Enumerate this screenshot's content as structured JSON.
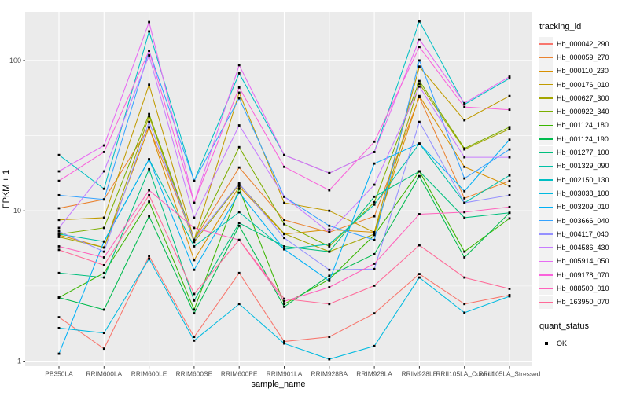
{
  "chart_data": {
    "type": "line",
    "title": "",
    "xlabel": "sample_name",
    "ylabel": "FPKM + 1",
    "y_scale": "log10",
    "ylim": [
      1,
      200
    ],
    "yticks": [
      1,
      10,
      100
    ],
    "grid": "on",
    "legend_position": "right",
    "legend_title": "tracking_id",
    "categories": [
      "PB350LA",
      "RRIM600LA",
      "RRIM600LE",
      "RRIM600SE",
      "RRIM600PE",
      "RRIM901LA",
      "RRIM928BA",
      "RRIM928LA",
      "RRIM928LE",
      "RRII105LA_Control",
      "RRII105LA_Stressed"
    ],
    "series": [
      {
        "name": "Hb_000042_290",
        "color": "#F8766D",
        "values": [
          1.96,
          1.21,
          5.0,
          1.45,
          3.86,
          1.35,
          1.45,
          2.08,
          3.8,
          2.4,
          2.75
        ]
      },
      {
        "name": "Hb_000059_270",
        "color": "#EA8331",
        "values": [
          10.4,
          11.9,
          35.9,
          6.4,
          19.4,
          8.7,
          7.2,
          9.2,
          57,
          12.1,
          15.8
        ]
      },
      {
        "name": "Hb_000110_230",
        "color": "#D89000",
        "values": [
          6.9,
          5.7,
          36,
          4.7,
          14.5,
          7.0,
          7.5,
          7.2,
          58,
          19.6,
          14.6
        ]
      },
      {
        "name": "Hb_000176_010",
        "color": "#C09B00",
        "values": [
          8.7,
          9.0,
          69,
          6.4,
          61,
          11.3,
          10.0,
          7.2,
          91,
          40,
          58
        ]
      },
      {
        "name": "Hb_000627_300",
        "color": "#A3A500",
        "values": [
          6.7,
          5.7,
          42.5,
          6.2,
          15.0,
          7.05,
          5.35,
          7.0,
          70,
          25.6,
          35
        ]
      },
      {
        "name": "Hb_000922_340",
        "color": "#7CAE00",
        "values": [
          7.0,
          7.7,
          44,
          6.4,
          26.5,
          8.15,
          5.8,
          11.4,
          73,
          26,
          36
        ]
      },
      {
        "name": "Hb_001124_180",
        "color": "#39B600",
        "values": [
          2.65,
          3.86,
          11.5,
          2.2,
          14.0,
          2.4,
          3.5,
          6.9,
          18.3,
          5.35,
          8.9
        ]
      },
      {
        "name": "Hb_001124_190",
        "color": "#00BB4E",
        "values": [
          2.65,
          2.2,
          9.2,
          2.08,
          7.95,
          2.3,
          3.7,
          5.15,
          17.0,
          4.9,
          9.7
        ]
      },
      {
        "name": "Hb_001277_100",
        "color": "#00BF7D",
        "values": [
          3.86,
          3.6,
          18.9,
          2.53,
          8.3,
          5.8,
          5.35,
          12.4,
          18.3,
          9.0,
          9.7
        ]
      },
      {
        "name": "Hb_001329_090",
        "color": "#00C1A7",
        "values": [
          7.0,
          6.25,
          22,
          5.8,
          9.8,
          5.55,
          6.0,
          11.0,
          28,
          11.3,
          17.2
        ]
      },
      {
        "name": "Hb_002150_130",
        "color": "#00BFC4",
        "values": [
          23.5,
          14.0,
          156,
          15.8,
          82,
          23.5,
          17.8,
          24.6,
          182,
          51,
          76
        ]
      },
      {
        "name": "Hb_003038_100",
        "color": "#00BAE0",
        "values": [
          1.66,
          1.54,
          4.8,
          1.37,
          2.4,
          1.31,
          1.03,
          1.26,
          3.6,
          2.1,
          2.7
        ]
      },
      {
        "name": "Hb_003209_010",
        "color": "#00B0F6",
        "values": [
          1.12,
          6.25,
          22,
          4.05,
          13.2,
          5.55,
          3.42,
          20.6,
          28,
          13.5,
          29.7
        ]
      },
      {
        "name": "Hb_003666_040",
        "color": "#35A2FF",
        "values": [
          12.7,
          11.9,
          116,
          15.8,
          56,
          12.4,
          7.95,
          6.4,
          100,
          16.4,
          25.6
        ]
      },
      {
        "name": "Hb_004117_040",
        "color": "#9590FF",
        "values": [
          7.3,
          5.35,
          39,
          6.4,
          15.2,
          6.6,
          4.05,
          4.1,
          39,
          11.3,
          12.7
        ]
      },
      {
        "name": "Hb_004586_430",
        "color": "#C77CFF",
        "values": [
          7.7,
          18.3,
          108,
          9.0,
          37,
          12.4,
          7.2,
          14.9,
          67,
          22.7,
          22.7
        ]
      },
      {
        "name": "Hb_005914_050",
        "color": "#E76BF3",
        "values": [
          18.3,
          27.2,
          180,
          11.3,
          93,
          23.5,
          17.8,
          24.6,
          138,
          52,
          78
        ]
      },
      {
        "name": "Hb_009178_070",
        "color": "#FA62DB",
        "values": [
          15.8,
          24.6,
          116,
          11.3,
          66,
          19.6,
          13.7,
          28.8,
          123,
          49,
          47
        ]
      },
      {
        "name": "Hb_088500_010",
        "color": "#FF62BC",
        "values": [
          5.8,
          4.9,
          13.7,
          7.7,
          6.4,
          2.5,
          3.1,
          4.45,
          9.5,
          9.8,
          10.6
        ]
      },
      {
        "name": "Hb_163950_070",
        "color": "#FF6A98",
        "values": [
          5.5,
          4.35,
          12.7,
          2.8,
          6.4,
          2.6,
          2.4,
          3.18,
          5.9,
          3.6,
          3.03
        ]
      }
    ],
    "marker": {
      "shape": "square",
      "color": "#000000"
    },
    "quant_legend": {
      "title": "quant_status",
      "items": [
        {
          "label": "OK"
        }
      ]
    }
  },
  "colors": {
    "panel_bg": "#EBEBEB",
    "grid": "#FFFFFF",
    "axis_text": "#4D4D4D",
    "axis_tick": "#333333",
    "legend_key_bg": "#F2F2F2",
    "background": "#FFFFFF"
  }
}
